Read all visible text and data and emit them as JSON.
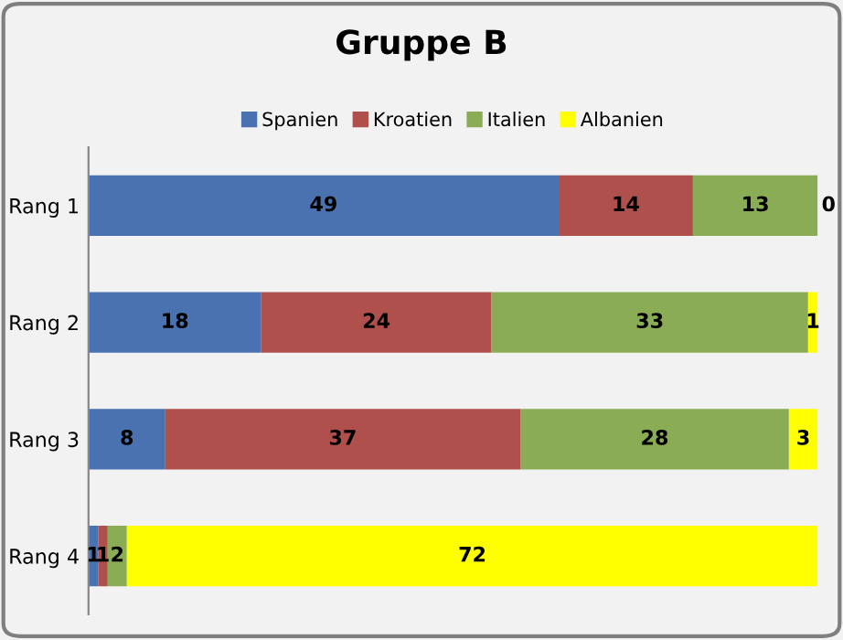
{
  "chart_data": {
    "type": "bar",
    "orientation": "horizontal",
    "stacked": true,
    "title": "Gruppe B",
    "categories": [
      "Rang 1",
      "Rang 2",
      "Rang 3",
      "Rang 4"
    ],
    "series": [
      {
        "name": "Spanien",
        "color": "#4a72b0",
        "values": [
          49,
          18,
          8,
          1
        ]
      },
      {
        "name": "Kroatien",
        "color": "#b0504d",
        "values": [
          14,
          24,
          37,
          1
        ]
      },
      {
        "name": "Italien",
        "color": "#8aac55",
        "values": [
          13,
          33,
          28,
          2
        ]
      },
      {
        "name": "Albanien",
        "color": "#ffff00",
        "values": [
          0,
          1,
          3,
          72
        ]
      }
    ],
    "data_labels": true,
    "legend": "top",
    "grid": false,
    "tick_labels": "y"
  }
}
